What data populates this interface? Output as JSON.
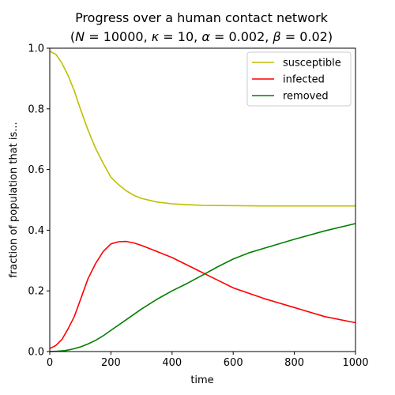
{
  "chart_data": {
    "type": "line",
    "title": "Progress over a human contact network",
    "subtitle_parts": {
      "open": "(",
      "n_label": "N",
      "n_value": " = 10000, ",
      "kappa_label": "κ",
      "kappa_value": " = 10, ",
      "alpha_label": "α",
      "alpha_value": " = 0.002, ",
      "beta_label": "β",
      "beta_value": " = 0.02)"
    },
    "xlabel": "time",
    "ylabel": "fraction of population that is...",
    "xlim": [
      0,
      1000
    ],
    "ylim": [
      0,
      1.0
    ],
    "xticks": [
      0,
      200,
      400,
      600,
      800,
      1000
    ],
    "xtick_labels": [
      "0",
      "200",
      "400",
      "600",
      "800",
      "1000"
    ],
    "yticks": [
      0,
      0.2,
      0.4,
      0.6,
      0.8,
      1.0
    ],
    "ytick_labels": [
      "0.0",
      "0.2",
      "0.4",
      "0.6",
      "0.8",
      "1.0"
    ],
    "grid": false,
    "legend_position": "top-right",
    "series": [
      {
        "name": "susceptible",
        "color": "#bfbf00",
        "x": [
          0,
          20,
          40,
          60,
          80,
          100,
          125,
          150,
          175,
          200,
          225,
          250,
          275,
          300,
          350,
          400,
          450,
          500,
          600,
          700,
          800,
          900,
          1000
        ],
        "y": [
          0.99,
          0.98,
          0.95,
          0.91,
          0.86,
          0.8,
          0.73,
          0.67,
          0.62,
          0.575,
          0.55,
          0.53,
          0.515,
          0.505,
          0.493,
          0.487,
          0.484,
          0.482,
          0.481,
          0.48,
          0.48,
          0.48,
          0.48
        ]
      },
      {
        "name": "infected",
        "color": "#ff0000",
        "x": [
          0,
          20,
          40,
          60,
          80,
          100,
          125,
          150,
          175,
          200,
          225,
          250,
          275,
          300,
          350,
          400,
          450,
          500,
          550,
          600,
          700,
          800,
          900,
          1000
        ],
        "y": [
          0.01,
          0.02,
          0.04,
          0.075,
          0.115,
          0.17,
          0.24,
          0.29,
          0.33,
          0.355,
          0.362,
          0.363,
          0.358,
          0.35,
          0.33,
          0.31,
          0.285,
          0.26,
          0.235,
          0.21,
          0.175,
          0.145,
          0.115,
          0.095
        ]
      },
      {
        "name": "removed",
        "color": "#008000",
        "x": [
          0,
          25,
          50,
          75,
          100,
          125,
          150,
          175,
          200,
          250,
          300,
          350,
          400,
          450,
          500,
          550,
          600,
          650,
          700,
          800,
          900,
          1000
        ],
        "y": [
          0.0,
          0.001,
          0.003,
          0.008,
          0.015,
          0.025,
          0.037,
          0.052,
          0.07,
          0.105,
          0.14,
          0.172,
          0.2,
          0.225,
          0.252,
          0.28,
          0.305,
          0.325,
          0.34,
          0.37,
          0.398,
          0.422
        ]
      }
    ]
  }
}
